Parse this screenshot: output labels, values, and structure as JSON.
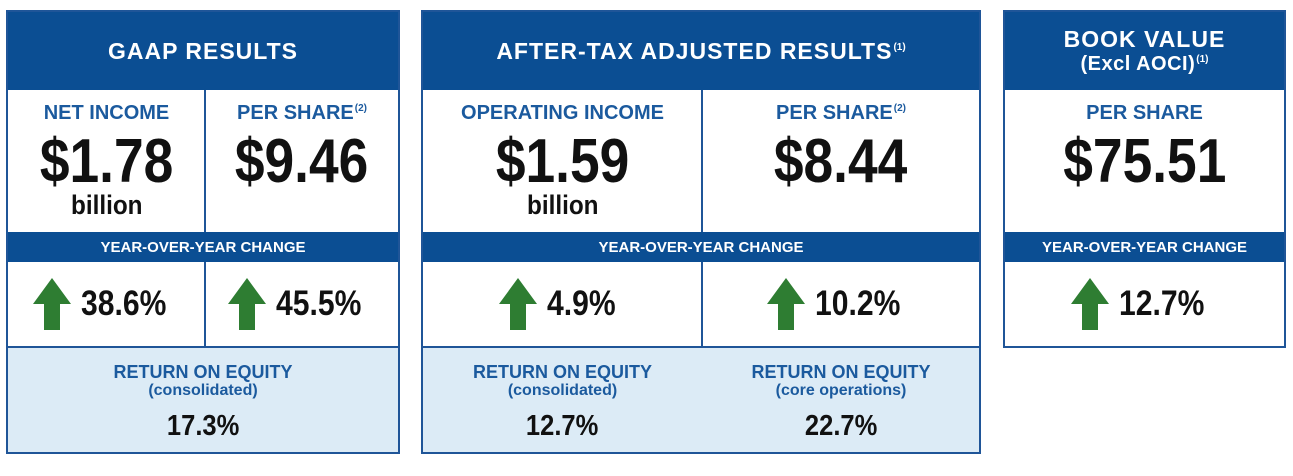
{
  "colors": {
    "navy": "#0b4e93",
    "label_blue": "#1b5a9e",
    "roe_bg": "#dcebf6",
    "arrow_green": "#2e7d32"
  },
  "gaap": {
    "title": "GAAP RESULTS",
    "net_income": {
      "label": "NET INCOME",
      "value": "$1.78",
      "unit": "billion"
    },
    "per_share": {
      "label": "PER SHARE",
      "note": "(2)",
      "value": "$9.46"
    },
    "yoy_label": "YEAR-OVER-YEAR CHANGE",
    "changes": [
      "38.6%",
      "45.5%"
    ],
    "roe": {
      "title": "RETURN ON EQUITY",
      "subtitle": "(consolidated)",
      "value": "17.3%"
    }
  },
  "adjusted": {
    "title": "AFTER-TAX ADJUSTED RESULTS",
    "title_note": "(1)",
    "operating_income": {
      "label": "OPERATING INCOME",
      "value": "$1.59",
      "unit": "billion"
    },
    "per_share": {
      "label": "PER SHARE",
      "note": "(2)",
      "value": "$8.44"
    },
    "yoy_label": "YEAR-OVER-YEAR CHANGE",
    "changes": [
      "4.9%",
      "10.2%"
    ],
    "roe": [
      {
        "title": "RETURN ON EQUITY",
        "subtitle": "(consolidated)",
        "value": "12.7%"
      },
      {
        "title": "RETURN ON EQUITY",
        "subtitle": "(core operations)",
        "value": "22.7%"
      }
    ]
  },
  "book_value": {
    "title_line1": "BOOK VALUE",
    "title_line2": "(Excl AOCI)",
    "title_note": "(1)",
    "per_share": {
      "label": "PER SHARE",
      "value": "$75.51"
    },
    "yoy_label": "YEAR-OVER-YEAR CHANGE",
    "change": "12.7%"
  }
}
